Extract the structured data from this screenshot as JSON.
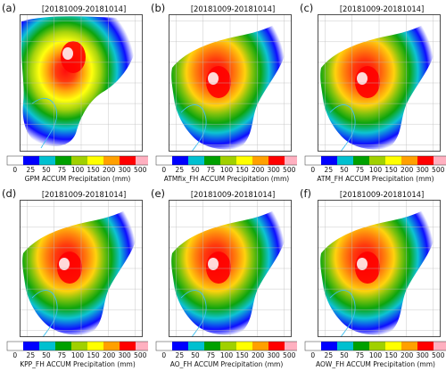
{
  "figure": {
    "panels": [
      {
        "label": "(a)",
        "title": "[20181009-20181014]",
        "colorbar_label": "GPM ACCUM Precipitation (mm)",
        "variant": "obs"
      },
      {
        "label": "(b)",
        "title": "[20181009-20181014]",
        "colorbar_label": "ATMfix_FH ACCUM Precipitation (mm)",
        "variant": "model"
      },
      {
        "label": "(c)",
        "title": "[20181009-20181014]",
        "colorbar_label": "ATM_FH ACCUM Precipitation (mm)",
        "variant": "model"
      },
      {
        "label": "(d)",
        "title": "[20181009-20181014]",
        "colorbar_label": "KPP_FH ACCUM  Precipitation (mm)",
        "variant": "model"
      },
      {
        "label": "(e)",
        "title": "[20181009-20181014]",
        "colorbar_label": "AO_FH ACCUM  Precipitation (mm)",
        "variant": "model"
      },
      {
        "label": "(f)",
        "title": "[20181009-20181014]",
        "colorbar_label": "AOW_FH ACCUM Precipitation (mm)",
        "variant": "model"
      }
    ],
    "colorbar": {
      "ticks": [
        "0",
        "25",
        "50",
        "75",
        "100",
        "150",
        "200",
        "300",
        "500"
      ],
      "colors": [
        "#ffffff",
        "#0000ff",
        "#00c0d0",
        "#00a000",
        "#a0d000",
        "#ffff00",
        "#ffa000",
        "#ff0000",
        "#ffb0c0"
      ],
      "extend_color": "#c000c0"
    }
  }
}
